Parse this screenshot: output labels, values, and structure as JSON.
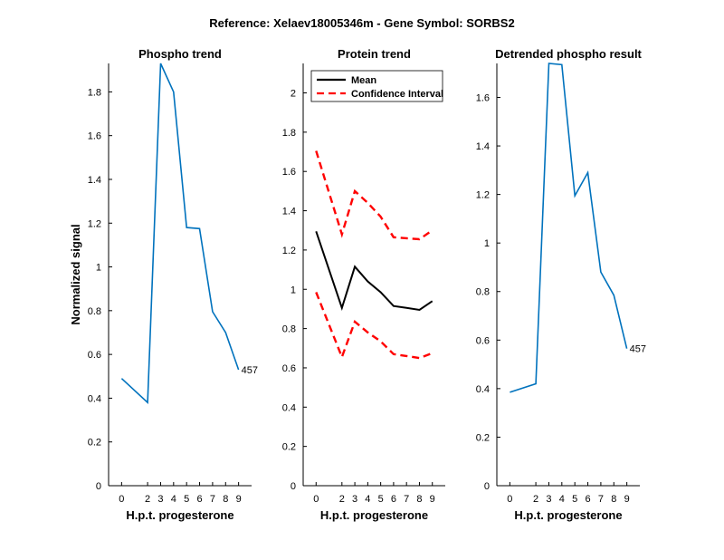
{
  "figure": {
    "title": "Reference:  Xelaev18005346m - Gene Symbol:  SORBS2"
  },
  "chart_data": [
    {
      "type": "line",
      "title": "Phospho trend",
      "xlabel": "H.p.t. progesterone",
      "ylabel": "Normalized signal",
      "xticks": [
        0,
        2,
        3,
        4,
        5,
        6,
        7,
        8,
        9
      ],
      "xlim": [
        -1,
        10
      ],
      "yticks": [
        0,
        0.2,
        0.4,
        0.6,
        0.8,
        1,
        1.2,
        1.4,
        1.6,
        1.8
      ],
      "ylim": [
        0,
        1.93
      ],
      "series": [
        {
          "color": "#0072BD",
          "x": [
            0,
            2,
            3,
            4,
            5,
            6,
            7,
            8,
            9
          ],
          "y": [
            0.49,
            0.38,
            1.93,
            1.8,
            1.18,
            1.175,
            0.795,
            0.7,
            0.53
          ]
        }
      ],
      "annotation": {
        "text": "457",
        "x": 9,
        "y": 0.53
      }
    },
    {
      "type": "line",
      "title": "Protein trend",
      "xlabel": "H.p.t. progesterone",
      "ylabel": "",
      "xticks": [
        0,
        2,
        3,
        4,
        5,
        6,
        7,
        8,
        9
      ],
      "xlim": [
        -1,
        10
      ],
      "yticks": [
        0,
        0.2,
        0.4,
        0.6,
        0.8,
        1,
        1.2,
        1.4,
        1.6,
        1.8,
        2
      ],
      "ylim": [
        0,
        2.15
      ],
      "legend_position": "top-left",
      "series": [
        {
          "name": "Mean",
          "color": "#000000",
          "dash": "solid",
          "x": [
            0,
            2,
            3,
            4,
            5,
            6,
            7,
            8,
            9
          ],
          "y": [
            1.295,
            0.905,
            1.115,
            1.04,
            0.985,
            0.915,
            0.905,
            0.895,
            0.94
          ]
        },
        {
          "name": "Confidence Interval",
          "color": "#FF0000",
          "dash": "dashed",
          "x": [
            0,
            2,
            3,
            4,
            5,
            6,
            7,
            8,
            9
          ],
          "y": [
            1.705,
            1.28,
            1.5,
            1.44,
            1.37,
            1.265,
            1.26,
            1.255,
            1.3
          ]
        },
        {
          "color": "#FF0000",
          "dash": "dashed",
          "x": [
            0,
            2,
            3,
            4,
            5,
            6,
            7,
            8,
            9
          ],
          "y": [
            0.985,
            0.655,
            0.835,
            0.78,
            0.735,
            0.67,
            0.66,
            0.65,
            0.675
          ]
        }
      ]
    },
    {
      "type": "line",
      "title": "Detrended phospho result",
      "xlabel": "H.p.t. progesterone",
      "ylabel": "",
      "xticks": [
        0,
        2,
        3,
        4,
        5,
        6,
        7,
        8,
        9
      ],
      "xlim": [
        -1,
        10
      ],
      "yticks": [
        0,
        0.2,
        0.4,
        0.6,
        0.8,
        1,
        1.2,
        1.4,
        1.6
      ],
      "ylim": [
        0,
        1.74
      ],
      "series": [
        {
          "color": "#0072BD",
          "x": [
            0,
            2,
            3,
            4,
            5,
            6,
            7,
            8,
            9
          ],
          "y": [
            0.385,
            0.42,
            1.74,
            1.735,
            1.195,
            1.29,
            0.88,
            0.785,
            0.565
          ]
        }
      ],
      "annotation": {
        "text": "457",
        "x": 9,
        "y": 0.565
      }
    }
  ]
}
